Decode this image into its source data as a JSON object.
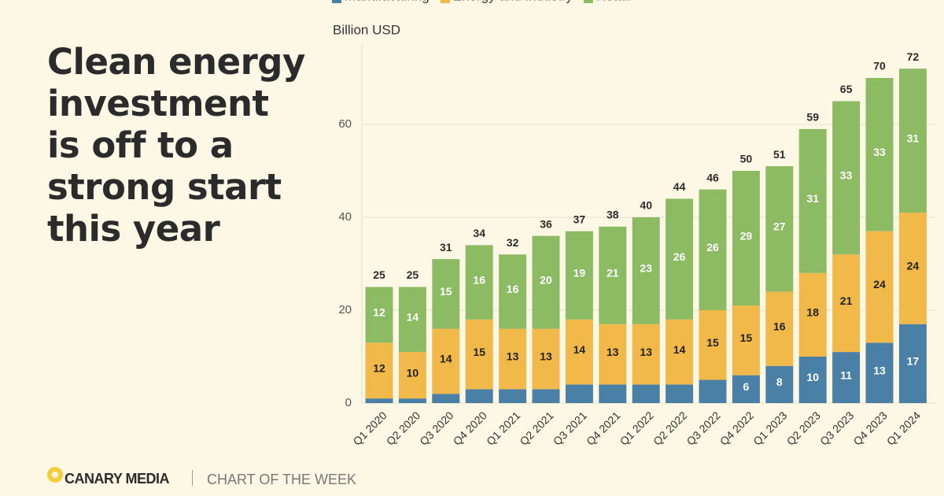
{
  "brand": "CANARY MEDIA",
  "section": "CHART OF THE WEEK",
  "chart_data": {
    "type": "stacked_bar",
    "title": "Clean energy\ninvestment\nis off to a\nstrong start\nthis year",
    "y_label": "Billion USD",
    "categories": [
      "Q1 2020",
      "Q2 2020",
      "Q3 2020",
      "Q4 2020",
      "Q1 2021",
      "Q2 2021",
      "Q3 2021",
      "Q4 2021",
      "Q1 2022",
      "Q2 2022",
      "Q3 2022",
      "Q4 2022",
      "Q1 2023",
      "Q2 2023",
      "Q3 2023",
      "Q4 2023",
      "Q1 2024"
    ],
    "series": [
      {
        "name": "Manufacturing",
        "color": "#4b80a6",
        "values": [
          1,
          1,
          2,
          3,
          3,
          3,
          4,
          4,
          4,
          4,
          5,
          6,
          8,
          10,
          11,
          13,
          17
        ]
      },
      {
        "name": "Energy and Industry",
        "color": "#f1b84a",
        "values": [
          12,
          10,
          14,
          15,
          13,
          13,
          14,
          13,
          13,
          14,
          15,
          15,
          16,
          18,
          21,
          24,
          24
        ]
      },
      {
        "name": "Retail",
        "color": "#8cbb63",
        "values": [
          12,
          14,
          15,
          16,
          16,
          20,
          19,
          21,
          23,
          26,
          26,
          29,
          27,
          31,
          33,
          33,
          31
        ]
      }
    ],
    "totals": [
      25,
      25,
      31,
      34,
      32,
      36,
      37,
      38,
      40,
      44,
      46,
      50,
      51,
      59,
      65,
      70,
      72
    ],
    "ylim": [
      0,
      76
    ],
    "yticks": [
      0,
      20,
      40,
      60
    ],
    "grid": true
  }
}
